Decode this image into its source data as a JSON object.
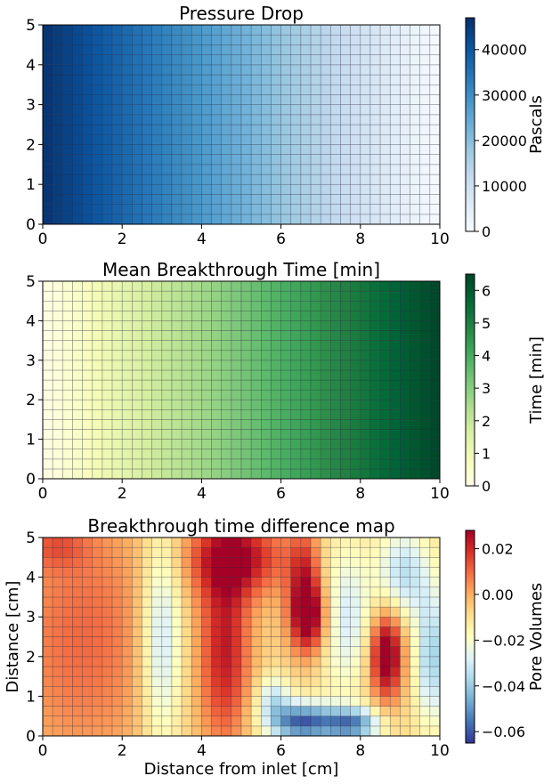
{
  "chart_data": [
    {
      "type": "heatmap",
      "title": "Pressure Drop",
      "xlabel": "",
      "ylabel": "",
      "xlim": [
        0,
        10
      ],
      "ylim": [
        0,
        5
      ],
      "xticks": [
        "0",
        "2",
        "4",
        "6",
        "8",
        "10"
      ],
      "yticks": [
        "0",
        "1",
        "2",
        "3",
        "4",
        "5"
      ],
      "grid": {
        "nx": 40,
        "ny": 20
      },
      "colormap": "Blues",
      "colors": {
        "low": "#f7fbff",
        "mid": "#6baed6",
        "high": "#08306b"
      },
      "field": "linear decreasing along x, from 46500 Pa at x=0 to 0 Pa at x=10",
      "values_by_x": {
        "x": [
          0,
          2,
          4,
          6,
          8,
          10
        ],
        "value": [
          46500,
          37200,
          27900,
          18600,
          9300,
          0
        ]
      },
      "colorbar": {
        "label": "Pascals",
        "min": 0,
        "max": 47000,
        "ticks": [
          "0",
          "10000",
          "20000",
          "30000",
          "40000"
        ],
        "tick_values": [
          0,
          10000,
          20000,
          30000,
          40000
        ]
      }
    },
    {
      "type": "heatmap",
      "title": "Mean Breakthrough Time [min]",
      "xlabel": "",
      "ylabel": "",
      "xlim": [
        0,
        10
      ],
      "ylim": [
        0,
        5
      ],
      "xticks": [
        "0",
        "2",
        "4",
        "6",
        "8",
        "10"
      ],
      "yticks": [
        "0",
        "1",
        "2",
        "3",
        "4",
        "5"
      ],
      "grid": {
        "nx": 40,
        "ny": 20
      },
      "colormap": "YlGn",
      "colors": {
        "low": "#ffffe5",
        "mid": "#78c679",
        "high": "#004529"
      },
      "field": "linear increasing along x, from 0 min at x=0 to 6.5 min at x=10",
      "values_by_x": {
        "x": [
          0,
          2,
          4,
          6,
          8,
          10
        ],
        "value": [
          0,
          1.3,
          2.6,
          3.9,
          5.2,
          6.5
        ]
      },
      "colorbar": {
        "label": "Time [min]",
        "min": 0,
        "max": 6.5,
        "ticks": [
          "0",
          "1",
          "2",
          "3",
          "4",
          "5",
          "6"
        ],
        "tick_values": [
          0,
          1,
          2,
          3,
          4,
          5,
          6
        ]
      }
    },
    {
      "type": "heatmap",
      "title": "Breakthrough time difference map",
      "xlabel": "Distance from inlet [cm]",
      "ylabel": "Distance [cm]",
      "xlim": [
        0,
        10
      ],
      "ylim": [
        0,
        5
      ],
      "xticks": [
        "0",
        "2",
        "4",
        "6",
        "8",
        "10"
      ],
      "yticks": [
        "0",
        "1",
        "2",
        "3",
        "4",
        "5"
      ],
      "grid": {
        "nx": 40,
        "ny": 20
      },
      "colormap": "RdYlBu_r",
      "colors": {
        "low": "#313695",
        "mid": "#ffffbf",
        "high": "#a50026"
      },
      "base_value": -0.008,
      "features": [
        {
          "x": 6.7,
          "y": 3.0,
          "sx": 0.35,
          "sy": 0.7,
          "value": 0.038
        },
        {
          "x": 4.9,
          "y": 4.5,
          "sx": 0.9,
          "sy": 0.7,
          "value": 0.024
        },
        {
          "x": 4.6,
          "y": 2.2,
          "sx": 0.45,
          "sy": 1.8,
          "value": 0.022
        },
        {
          "x": 6.6,
          "y": 4.3,
          "sx": 0.3,
          "sy": 0.8,
          "value": 0.012
        },
        {
          "x": 8.65,
          "y": 2.05,
          "sx": 0.3,
          "sy": 0.8,
          "value": 0.038
        },
        {
          "x": 3.0,
          "y": 2.5,
          "sx": 0.38,
          "sy": 2.0,
          "value": -0.036
        },
        {
          "x": 6.5,
          "y": 0.35,
          "sx": 0.6,
          "sy": 0.35,
          "value": -0.058
        },
        {
          "x": 7.8,
          "y": 0.3,
          "sx": 0.5,
          "sy": 0.3,
          "value": -0.05
        },
        {
          "x": 5.8,
          "y": 1.0,
          "sx": 0.3,
          "sy": 0.4,
          "value": -0.03
        },
        {
          "x": 7.6,
          "y": 3.0,
          "sx": 0.55,
          "sy": 1.3,
          "value": -0.03
        },
        {
          "x": 9.1,
          "y": 4.1,
          "sx": 0.45,
          "sy": 0.8,
          "value": -0.034
        },
        {
          "x": 9.8,
          "y": 2.0,
          "sx": 0.3,
          "sy": 1.2,
          "value": -0.038
        },
        {
          "x": 1.0,
          "y": 2.5,
          "sx": 1.5,
          "sy": 2.5,
          "value": 0.01
        },
        {
          "x": 0.3,
          "y": 4.8,
          "sx": 0.6,
          "sy": 0.4,
          "value": 0.004
        }
      ],
      "colorbar": {
        "label": "Pore Volumes",
        "min": -0.065,
        "max": 0.028,
        "ticks": [
          "−0.06",
          "−0.04",
          "−0.02",
          "0.00",
          "0.02"
        ],
        "tick_values": [
          -0.06,
          -0.04,
          -0.02,
          0.0,
          0.02
        ]
      }
    }
  ]
}
